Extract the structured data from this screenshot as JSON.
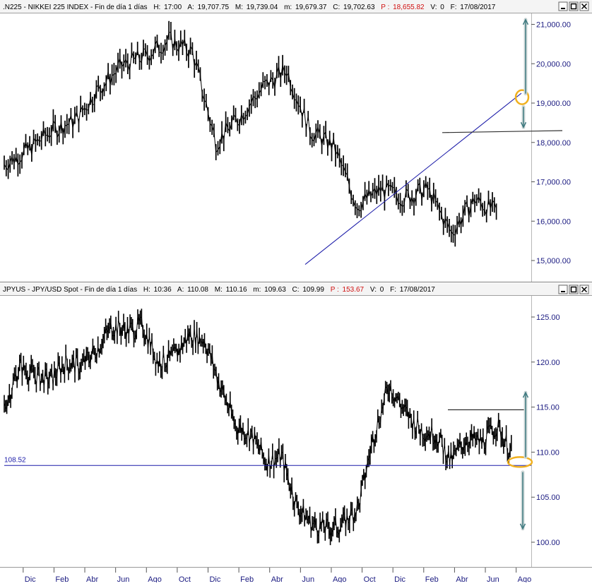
{
  "panels": [
    {
      "id": "nikkei",
      "header": {
        "symbol": ".N225 - NIKKEI 225 INDEX - Fin de día 1 días",
        "h_label": "H:",
        "h_value": "17:00",
        "a_label": "A:",
        "a_value": "19,707.75",
        "m_label": "M:",
        "m_value": "19,739.04",
        "min_label": "m:",
        "min_value": "19,679.37",
        "c_label": "C:",
        "c_value": "19,702.63",
        "p_label": "P :",
        "p_value": "18,655.82",
        "v_label": "V:",
        "v_value": "0",
        "f_label": "F:",
        "f_value": "17/08/2017"
      },
      "y_ticks": [
        "21,000.00",
        "20,000.00",
        "19,000.00",
        "18,000.00",
        "17,000.00",
        "16,000.00",
        "15,000.00"
      ]
    },
    {
      "id": "jpyusd",
      "header": {
        "symbol": "JPYUS - JPY/USD Spot - Fin de día 1 días",
        "h_label": "H:",
        "h_value": "10:36",
        "a_label": "A:",
        "a_value": "110.08",
        "m_label": "M:",
        "m_value": "110.16",
        "min_label": "m:",
        "min_value": "109.63",
        "c_label": "C:",
        "c_value": "109.99",
        "p_label": "P :",
        "p_value": "153.67",
        "v_label": "V:",
        "v_value": "0",
        "f_label": "F:",
        "f_value": "17/08/2017"
      },
      "y_ticks": [
        "125.00",
        "120.00",
        "115.00",
        "110.00",
        "105.00",
        "100.00"
      ],
      "hline_label": "108.52"
    }
  ],
  "x_ticks": [
    "Dic",
    "Feb",
    "Abr",
    "Jun",
    "Ago",
    "Oct",
    "Dic",
    "Feb",
    "Abr",
    "Jun",
    "Ago",
    "Oct",
    "Dic",
    "Feb",
    "Abr",
    "Jun",
    "Ago"
  ],
  "colors": {
    "price": "#000000",
    "axis_text": "#1a1a80",
    "support_line": "#1a1aa8",
    "resistance_line": "#000000",
    "highlight_circle": "#f0b020",
    "projection_arrow": "#3f7a80",
    "prior_close": "#d01010"
  },
  "chart_data": [
    {
      "type": "line",
      "name": ".N225 - NIKKEI 225 INDEX",
      "y_range": [
        14800,
        21300
      ],
      "x": [
        "2015-11",
        "2015-12",
        "2016-01",
        "2016-02",
        "2016-03",
        "2016-04",
        "2016-05",
        "2016-06",
        "2016-07",
        "2016-08",
        "2016-09",
        "2016-10",
        "2016-11",
        "2016-12",
        "2017-01",
        "2017-02",
        "2017-03",
        "2017-04",
        "2017-05",
        "2017-06",
        "2017-07",
        "2017-08"
      ],
      "series": [
        {
          "values": [
            17450,
            17800,
            18300,
            18550,
            19350,
            19950,
            20200,
            20600,
            20300,
            18000,
            18650,
            19400,
            19850,
            18300,
            17900,
            16400,
            16800,
            16600,
            16800,
            15700,
            16550,
            16200
          ]
        }
      ],
      "extra_points": {
        "2016-02": 15000,
        "2016-06": 15100,
        "2016-10": 16400,
        "2016-12": 19300,
        "2017-04": 18400,
        "2017-06": 20100,
        "2017-08": 19700
      },
      "trendline": [
        [
          "2016-06",
          14900
        ],
        [
          "2017-08",
          19250
        ]
      ],
      "support_line": [
        [
          "2017-04",
          18250
        ],
        [
          "2017-08",
          18300
        ]
      ],
      "highlight": [
        "2017-08",
        19150
      ],
      "projection_up": [
        "2017-08",
        21300
      ],
      "projection_down": [
        "2017-08",
        18350
      ]
    },
    {
      "type": "line",
      "name": "JPYUS - JPY/USD Spot",
      "y_range": [
        98,
        127
      ],
      "x": [
        "2014-11",
        "2014-12",
        "2015-01",
        "2015-02",
        "2015-03",
        "2015-04",
        "2015-05",
        "2015-06",
        "2015-07",
        "2015-08",
        "2015-09",
        "2015-10",
        "2015-11",
        "2015-12",
        "2016-01",
        "2016-02",
        "2016-03",
        "2016-04",
        "2016-05",
        "2016-06",
        "2016-07",
        "2016-08",
        "2016-09",
        "2016-10",
        "2016-11",
        "2016-12",
        "2017-01",
        "2017-02",
        "2017-03",
        "2017-04",
        "2017-05",
        "2017-06",
        "2017-07",
        "2017-08"
      ],
      "series": [
        {
          "values": [
            115.0,
            119.5,
            118.5,
            118.0,
            120.0,
            119.5,
            121.5,
            124.0,
            123.5,
            124.0,
            120.0,
            120.5,
            123.0,
            122.5,
            117.5,
            113.0,
            112.0,
            109.0,
            109.5,
            104.0,
            102.0,
            101.5,
            102.0,
            104.0,
            112.0,
            117.5,
            114.5,
            112.5,
            112.0,
            109.0,
            111.5,
            111.0,
            113.0,
            109.5
          ]
        }
      ],
      "hline": 108.52,
      "resistance_line": [
        [
          "2017-03",
          114.7
        ],
        [
          "2017-08",
          114.7
        ]
      ],
      "highlight": [
        "2017-08",
        108.9
      ],
      "projection_up": [
        "2017-08",
        117.0
      ],
      "projection_down": [
        "2017-08",
        101.5
      ]
    }
  ]
}
